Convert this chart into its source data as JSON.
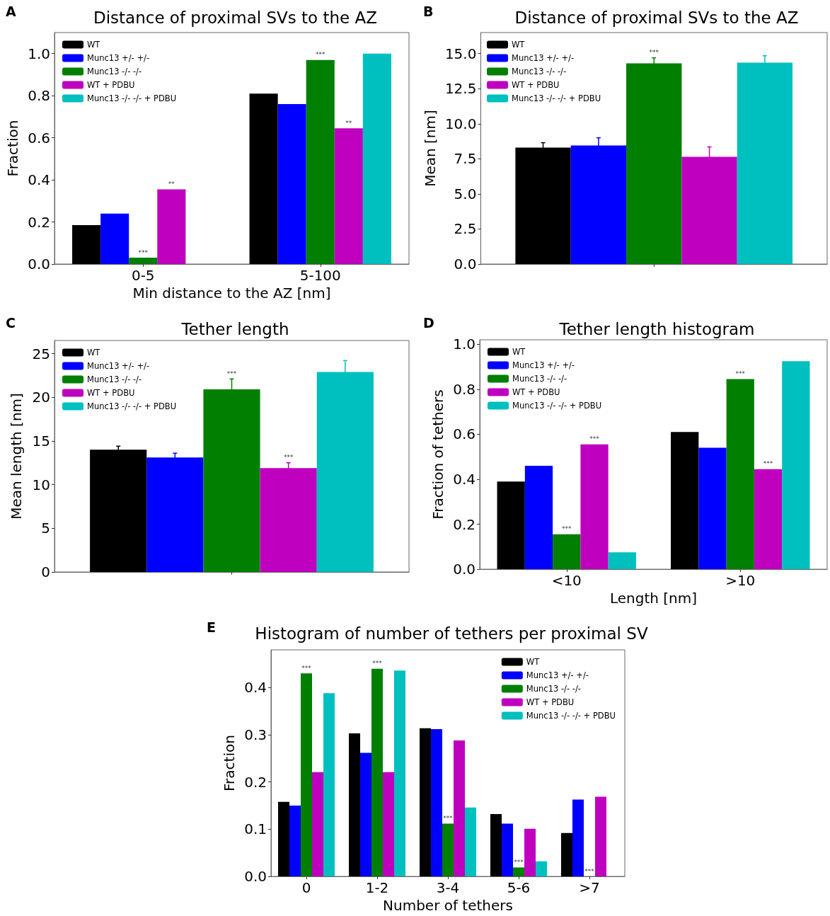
{
  "chart_data": [
    {
      "type": "bar",
      "title": "Distance of proximal SVs to the AZ",
      "annotations": [
        "A"
      ],
      "xlabel": "Min distance to the AZ [nm]",
      "ylabel": "Fraction",
      "categories": [
        "0-5",
        "5-100"
      ],
      "ylim": [
        0,
        1.1
      ],
      "yticks": [
        {
          "value": 0,
          "label": "0.0"
        },
        0.2,
        0.4,
        0.6,
        0.8,
        {
          "value": 1,
          "label": "1.0"
        }
      ],
      "grid": false,
      "legend": "top left",
      "series": [
        {
          "name": "WT",
          "color": "#000000",
          "values": [
            0.185,
            0.81
          ]
        },
        {
          "name": "Munc13 +/- +/-",
          "color": "#0000ff",
          "values": [
            0.24,
            0.76
          ]
        },
        {
          "name": "Munc13 -/- -/-",
          "color": "#007f00",
          "values": [
            0.03,
            0.97
          ],
          "value_labels": [
            "***",
            "***"
          ]
        },
        {
          "name": "WT + PDBU",
          "color": "#bf00bf",
          "values": [
            0.355,
            0.645
          ],
          "value_labels": [
            "**",
            "**"
          ]
        },
        {
          "name": "Munc13 -/- -/- + PDBU",
          "color": "#00bfbf",
          "values": [
            0,
            1.0
          ]
        }
      ]
    },
    {
      "type": "bar",
      "title": "Distance of proximal SVs to the AZ",
      "annotations": [
        "B"
      ],
      "ylabel": "Mean [nm]",
      "categories": [
        null
      ],
      "ylim": [
        0,
        16.5
      ],
      "yticks": [
        {
          "value": 0,
          "label": "0.0"
        },
        2.5,
        {
          "value": 5,
          "label": "5.0"
        },
        7.5,
        {
          "value": 10,
          "label": "10.0"
        },
        12.5,
        {
          "value": 15,
          "label": "15.0"
        }
      ],
      "grid": false,
      "legend": "top left",
      "series": [
        {
          "name": "WT",
          "color": "#000000",
          "values": [
            8.3
          ],
          "errors": [
            0.35
          ]
        },
        {
          "name": "Munc13 +/- +/-",
          "color": "#0000ff",
          "values": [
            8.45
          ],
          "errors": [
            0.55
          ]
        },
        {
          "name": "Munc13 -/- -/-",
          "color": "#007f00",
          "values": [
            14.3
          ],
          "errors": [
            0.4
          ],
          "value_labels": [
            "***"
          ]
        },
        {
          "name": "WT + PDBU",
          "color": "#bf00bf",
          "values": [
            7.65
          ],
          "errors": [
            0.7
          ]
        },
        {
          "name": "Munc13 -/- -/- + PDBU",
          "color": "#00bfbf",
          "values": [
            14.35
          ],
          "errors": [
            0.5
          ]
        }
      ]
    },
    {
      "type": "bar",
      "title": "Tether length",
      "annotations": [
        "C"
      ],
      "ylabel": "Mean length [nm]",
      "categories": [
        null
      ],
      "ylim": [
        0,
        26.5
      ],
      "yticks": [
        0,
        5,
        10,
        15,
        20,
        25
      ],
      "grid": false,
      "legend": "top left",
      "series": [
        {
          "name": "WT",
          "color": "#000000",
          "values": [
            14.0
          ],
          "errors": [
            0.4
          ]
        },
        {
          "name": "Munc13 +/- +/-",
          "color": "#0000ff",
          "values": [
            13.1
          ],
          "errors": [
            0.5
          ]
        },
        {
          "name": "Munc13 -/- -/-",
          "color": "#007f00",
          "values": [
            20.9
          ],
          "errors": [
            1.2
          ],
          "value_labels": [
            "***"
          ]
        },
        {
          "name": "WT + PDBU",
          "color": "#bf00bf",
          "values": [
            11.9
          ],
          "errors": [
            0.6
          ],
          "value_labels": [
            "***"
          ]
        },
        {
          "name": "Munc13 -/- -/- + PDBU",
          "color": "#00bfbf",
          "values": [
            22.9
          ],
          "errors": [
            1.3
          ]
        }
      ]
    },
    {
      "type": "bar",
      "title": "Tether length histogram",
      "annotations": [
        "D"
      ],
      "xlabel": "Length [nm]",
      "ylabel": "Fraction of tethers",
      "categories": [
        "<10",
        ">10"
      ],
      "ylim": [
        0,
        1.02
      ],
      "yticks": [
        {
          "value": 0,
          "label": "0.0"
        },
        0.2,
        0.4,
        0.6,
        0.8,
        {
          "value": 1,
          "label": "1.0"
        }
      ],
      "grid": false,
      "legend": "top left",
      "series": [
        {
          "name": "WT",
          "color": "#000000",
          "values": [
            0.39,
            0.61
          ]
        },
        {
          "name": "Munc13 +/- +/-",
          "color": "#0000ff",
          "values": [
            0.46,
            0.54
          ]
        },
        {
          "name": "Munc13 -/- -/-",
          "color": "#007f00",
          "values": [
            0.155,
            0.845
          ],
          "value_labels": [
            "***",
            "***"
          ]
        },
        {
          "name": "WT + PDBU",
          "color": "#bf00bf",
          "values": [
            0.555,
            0.445
          ],
          "value_labels": [
            "***",
            "***"
          ]
        },
        {
          "name": "Munc13 -/- -/- + PDBU",
          "color": "#00bfbf",
          "values": [
            0.075,
            0.925
          ]
        }
      ]
    },
    {
      "type": "bar",
      "title": "Histogram of number of tethers per proximal SV",
      "annotations": [
        "E"
      ],
      "xlabel": "Number of tethers",
      "ylabel": "Fraction",
      "categories": [
        "0",
        "1-2",
        "3-4",
        "5-6",
        ">7"
      ],
      "ylim": [
        0,
        0.48
      ],
      "yticks": [
        {
          "value": 0,
          "label": "0.0"
        },
        0.1,
        0.2,
        0.3,
        0.4
      ],
      "grid": false,
      "legend": "top right",
      "series": [
        {
          "name": "WT",
          "color": "#000000",
          "values": [
            0.158,
            0.303,
            0.314,
            0.132,
            0.092
          ]
        },
        {
          "name": "Munc13 +/- +/-",
          "color": "#0000ff",
          "values": [
            0.15,
            0.262,
            0.312,
            0.112,
            0.163
          ]
        },
        {
          "name": "Munc13 -/- -/-",
          "color": "#007f00",
          "values": [
            0.43,
            0.44,
            0.112,
            0.019,
            0
          ],
          "value_labels": [
            "***",
            "***",
            "***",
            "***",
            "***"
          ]
        },
        {
          "name": "WT + PDBU",
          "color": "#bf00bf",
          "values": [
            0.221,
            0.221,
            0.288,
            0.101,
            0.169
          ]
        },
        {
          "name": "Munc13 -/- -/- + PDBU",
          "color": "#00bfbf",
          "values": [
            0.388,
            0.436,
            0.146,
            0.032,
            0
          ]
        }
      ]
    }
  ]
}
